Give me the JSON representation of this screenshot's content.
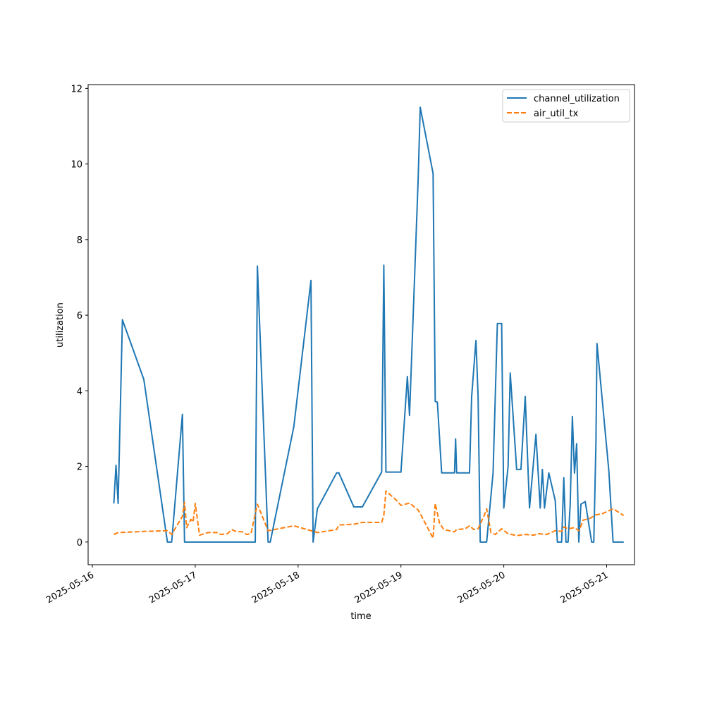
{
  "chart_data": {
    "type": "line",
    "title": "",
    "xlabel": "time",
    "ylabel": "utilization",
    "x_type": "datetime",
    "xlim": [
      "2025-05-15T23:00",
      "2025-05-21T06:30"
    ],
    "ylim": [
      -0.6,
      12.1
    ],
    "x_ticks": [
      "2025-05-16",
      "2025-05-17",
      "2025-05-18",
      "2025-05-19",
      "2025-05-20",
      "2025-05-21"
    ],
    "y_ticks": [
      0,
      2,
      4,
      6,
      8,
      10,
      12
    ],
    "grid": false,
    "legend_position": "top-right",
    "series": [
      {
        "name": "channel_utilization",
        "color": "#1f77b4",
        "style": "solid",
        "points": [
          [
            "2025-05-16T05:00",
            1.02
          ],
          [
            "2025-05-16T05:30",
            2.03
          ],
          [
            "2025-05-16T06:00",
            1.02
          ],
          [
            "2025-05-16T07:00",
            5.88
          ],
          [
            "2025-05-16T12:00",
            4.3
          ],
          [
            "2025-05-16T17:30",
            0.0
          ],
          [
            "2025-05-16T18:30",
            0.0
          ],
          [
            "2025-05-16T21:00",
            3.38
          ],
          [
            "2025-05-16T21:30",
            0.0
          ],
          [
            "2025-05-17T14:00",
            0.0
          ],
          [
            "2025-05-17T14:30",
            7.3
          ],
          [
            "2025-05-17T17:00",
            0.0
          ],
          [
            "2025-05-17T17:30",
            0.0
          ],
          [
            "2025-05-17T23:00",
            3.05
          ],
          [
            "2025-05-18T03:00",
            6.92
          ],
          [
            "2025-05-18T03:30",
            0.0
          ],
          [
            "2025-05-18T04:30",
            0.88
          ],
          [
            "2025-05-18T09:00",
            1.83
          ],
          [
            "2025-05-18T09:30",
            1.83
          ],
          [
            "2025-05-18T13:00",
            0.93
          ],
          [
            "2025-05-18T15:00",
            0.93
          ],
          [
            "2025-05-18T19:30",
            1.85
          ],
          [
            "2025-05-18T20:00",
            7.32
          ],
          [
            "2025-05-18T20:30",
            1.85
          ],
          [
            "2025-05-19T00:00",
            1.85
          ],
          [
            "2025-05-19T01:30",
            4.38
          ],
          [
            "2025-05-19T02:00",
            3.35
          ],
          [
            "2025-05-19T04:00",
            9.55
          ],
          [
            "2025-05-19T04:30",
            11.5
          ],
          [
            "2025-05-19T07:30",
            9.75
          ],
          [
            "2025-05-19T08:00",
            3.72
          ],
          [
            "2025-05-19T08:30",
            3.7
          ],
          [
            "2025-05-19T09:30",
            1.83
          ],
          [
            "2025-05-19T12:30",
            1.83
          ],
          [
            "2025-05-19T12:45",
            2.73
          ],
          [
            "2025-05-19T13:00",
            1.83
          ],
          [
            "2025-05-19T16:00",
            1.83
          ],
          [
            "2025-05-19T16:30",
            3.85
          ],
          [
            "2025-05-19T17:30",
            5.33
          ],
          [
            "2025-05-19T18:00",
            3.85
          ],
          [
            "2025-05-19T18:30",
            0.0
          ],
          [
            "2025-05-19T20:00",
            0.0
          ],
          [
            "2025-05-19T21:30",
            1.83
          ],
          [
            "2025-05-19T22:30",
            5.78
          ],
          [
            "2025-05-19T23:30",
            5.78
          ],
          [
            "2025-05-20T00:00",
            0.9
          ],
          [
            "2025-05-20T01:00",
            2.0
          ],
          [
            "2025-05-20T01:30",
            4.47
          ],
          [
            "2025-05-20T03:00",
            1.92
          ],
          [
            "2025-05-20T04:00",
            1.92
          ],
          [
            "2025-05-20T05:00",
            3.85
          ],
          [
            "2025-05-20T06:00",
            0.9
          ],
          [
            "2025-05-20T07:30",
            2.85
          ],
          [
            "2025-05-20T08:30",
            0.9
          ],
          [
            "2025-05-20T09:00",
            1.92
          ],
          [
            "2025-05-20T09:30",
            0.9
          ],
          [
            "2025-05-20T10:30",
            1.83
          ],
          [
            "2025-05-20T12:00",
            1.1
          ],
          [
            "2025-05-20T12:30",
            0.0
          ],
          [
            "2025-05-20T13:30",
            0.0
          ],
          [
            "2025-05-20T14:00",
            1.7
          ],
          [
            "2025-05-20T14:30",
            0.0
          ],
          [
            "2025-05-20T15:00",
            0.0
          ],
          [
            "2025-05-20T15:30",
            1.0
          ],
          [
            "2025-05-20T16:00",
            3.32
          ],
          [
            "2025-05-20T16:30",
            1.82
          ],
          [
            "2025-05-20T17:00",
            2.6
          ],
          [
            "2025-05-20T17:30",
            0.0
          ],
          [
            "2025-05-20T18:00",
            1.0
          ],
          [
            "2025-05-20T19:00",
            1.07
          ],
          [
            "2025-05-20T20:30",
            0.0
          ],
          [
            "2025-05-20T21:00",
            0.0
          ],
          [
            "2025-05-20T21:30",
            2.6
          ],
          [
            "2025-05-20T21:45",
            5.25
          ],
          [
            "2025-05-21T00:30",
            1.9
          ],
          [
            "2025-05-21T01:30",
            0.0
          ],
          [
            "2025-05-21T04:00",
            0.0
          ]
        ]
      },
      {
        "name": "air_util_tx",
        "color": "#ff7f0e",
        "style": "dashed",
        "points": [
          [
            "2025-05-16T05:00",
            0.2
          ],
          [
            "2025-05-16T06:00",
            0.25
          ],
          [
            "2025-05-16T12:00",
            0.28
          ],
          [
            "2025-05-16T17:30",
            0.3
          ],
          [
            "2025-05-16T18:30",
            0.2
          ],
          [
            "2025-05-16T21:00",
            0.68
          ],
          [
            "2025-05-16T21:30",
            1.05
          ],
          [
            "2025-05-16T22:00",
            0.38
          ],
          [
            "2025-05-16T23:00",
            0.6
          ],
          [
            "2025-05-16T23:30",
            0.53
          ],
          [
            "2025-05-17T00:00",
            1.02
          ],
          [
            "2025-05-17T01:00",
            0.18
          ],
          [
            "2025-05-17T03:00",
            0.25
          ],
          [
            "2025-05-17T05:00",
            0.25
          ],
          [
            "2025-05-17T06:00",
            0.2
          ],
          [
            "2025-05-17T07:30",
            0.22
          ],
          [
            "2025-05-17T08:30",
            0.33
          ],
          [
            "2025-05-17T09:30",
            0.28
          ],
          [
            "2025-05-17T11:00",
            0.27
          ],
          [
            "2025-05-17T12:00",
            0.2
          ],
          [
            "2025-05-17T13:00",
            0.22
          ],
          [
            "2025-05-17T14:30",
            1.0
          ],
          [
            "2025-05-17T17:00",
            0.3
          ],
          [
            "2025-05-17T18:00",
            0.32
          ],
          [
            "2025-05-17T23:00",
            0.43
          ],
          [
            "2025-05-18T03:00",
            0.3
          ],
          [
            "2025-05-18T04:30",
            0.25
          ],
          [
            "2025-05-18T09:00",
            0.33
          ],
          [
            "2025-05-18T09:30",
            0.45
          ],
          [
            "2025-05-18T13:00",
            0.47
          ],
          [
            "2025-05-18T15:00",
            0.52
          ],
          [
            "2025-05-18T19:30",
            0.52
          ],
          [
            "2025-05-18T20:00",
            0.7
          ],
          [
            "2025-05-18T20:30",
            1.35
          ],
          [
            "2025-05-18T23:00",
            1.1
          ],
          [
            "2025-05-19T00:00",
            0.97
          ],
          [
            "2025-05-19T02:00",
            1.03
          ],
          [
            "2025-05-19T04:00",
            0.85
          ],
          [
            "2025-05-19T04:30",
            0.75
          ],
          [
            "2025-05-19T07:30",
            0.1
          ],
          [
            "2025-05-19T08:00",
            1.02
          ],
          [
            "2025-05-19T09:00",
            0.5
          ],
          [
            "2025-05-19T10:00",
            0.33
          ],
          [
            "2025-05-19T12:30",
            0.27
          ],
          [
            "2025-05-19T13:00",
            0.33
          ],
          [
            "2025-05-19T15:00",
            0.35
          ],
          [
            "2025-05-19T16:00",
            0.43
          ],
          [
            "2025-05-19T17:00",
            0.33
          ],
          [
            "2025-05-19T18:00",
            0.35
          ],
          [
            "2025-05-19T19:30",
            0.72
          ],
          [
            "2025-05-19T20:00",
            0.88
          ],
          [
            "2025-05-19T21:00",
            0.25
          ],
          [
            "2025-05-19T22:00",
            0.2
          ],
          [
            "2025-05-19T23:30",
            0.35
          ],
          [
            "2025-05-20T01:00",
            0.22
          ],
          [
            "2025-05-20T03:00",
            0.17
          ],
          [
            "2025-05-20T05:00",
            0.2
          ],
          [
            "2025-05-20T07:00",
            0.18
          ],
          [
            "2025-05-20T08:00",
            0.22
          ],
          [
            "2025-05-20T10:00",
            0.2
          ],
          [
            "2025-05-20T12:00",
            0.3
          ],
          [
            "2025-05-20T13:30",
            0.28
          ],
          [
            "2025-05-20T14:00",
            0.4
          ],
          [
            "2025-05-20T15:00",
            0.35
          ],
          [
            "2025-05-20T16:30",
            0.38
          ],
          [
            "2025-05-20T17:30",
            0.3
          ],
          [
            "2025-05-20T18:00",
            0.42
          ],
          [
            "2025-05-20T18:30",
            0.58
          ],
          [
            "2025-05-20T20:00",
            0.62
          ],
          [
            "2025-05-20T21:30",
            0.72
          ],
          [
            "2025-05-20T23:00",
            0.75
          ],
          [
            "2025-05-21T01:30",
            0.88
          ],
          [
            "2025-05-21T04:00",
            0.7
          ]
        ]
      }
    ]
  }
}
